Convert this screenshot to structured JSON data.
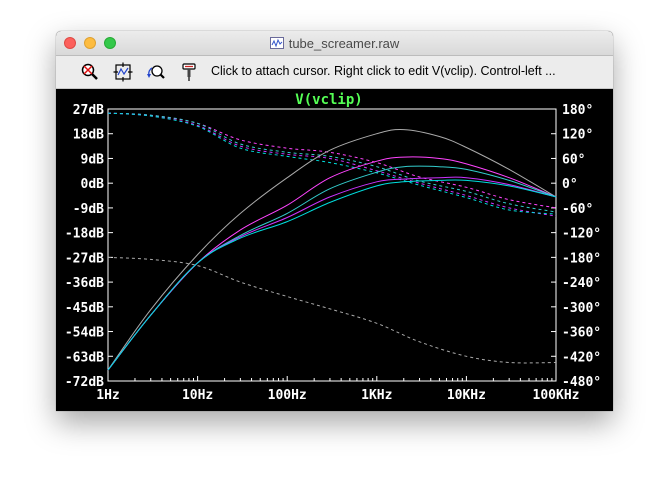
{
  "window": {
    "title": "tube_screamer.raw",
    "title_icon": "waveform-file-icon"
  },
  "toolbar": {
    "tools": [
      {
        "name": "zoom-cancel-icon"
      },
      {
        "name": "autorange-icon"
      },
      {
        "name": "undo-zoom-icon"
      },
      {
        "name": "probe-icon"
      }
    ],
    "status": "Click to attach cursor. Right click to edit V(vclip).  Control-left ..."
  },
  "chart_data": {
    "type": "line",
    "title": "V(vclip)",
    "title_color": "#55ff55",
    "background": "#000000",
    "x_scale": "log",
    "xlim": [
      1,
      100000
    ],
    "x_ticks": [
      1,
      10,
      100,
      1000,
      10000,
      100000
    ],
    "x_tick_labels": [
      "1Hz",
      "10Hz",
      "100Hz",
      "1KHz",
      "10KHz",
      "100KHz"
    ],
    "ylim_left": [
      -72,
      27
    ],
    "y_left_ticks": [
      27,
      18,
      9,
      0,
      -9,
      -18,
      -27,
      -36,
      -45,
      -54,
      -63,
      -72
    ],
    "y_left_tick_labels": [
      "27dB",
      "18dB",
      "9dB",
      "0dB",
      "-9dB",
      "-18dB",
      "-27dB",
      "-36dB",
      "-45dB",
      "-54dB",
      "-63dB",
      "-72dB"
    ],
    "ylim_right": [
      -480,
      180
    ],
    "y_right_ticks": [
      180,
      120,
      60,
      0,
      -60,
      -120,
      -180,
      -240,
      -300,
      -360,
      -420,
      -480
    ],
    "y_right_tick_labels": [
      "180°",
      "120°",
      "60°",
      "0°",
      "-60°",
      "-120°",
      "-180°",
      "-240°",
      "-300°",
      "-360°",
      "-420°",
      "-480°"
    ],
    "grid": false,
    "magnitude_series": [
      {
        "color": "#aaaaaa",
        "x": [
          1,
          3,
          10,
          30,
          100,
          300,
          1000,
          2000,
          5000,
          10000,
          30000,
          100000
        ],
        "y": [
          -68,
          -46,
          -26,
          -11,
          2,
          12,
          18,
          19.5,
          17,
          13,
          5,
          -5
        ]
      },
      {
        "color": "#ff44ff",
        "x": [
          1,
          3,
          10,
          30,
          100,
          300,
          1000,
          2000,
          5000,
          10000,
          30000,
          100000
        ],
        "y": [
          -68,
          -48,
          -29,
          -17,
          -8,
          2,
          8,
          9.5,
          9,
          7,
          2,
          -5
        ]
      },
      {
        "color": "#33cccc",
        "x": [
          1,
          3,
          10,
          30,
          100,
          300,
          1000,
          2000,
          5000,
          10000,
          30000,
          100000
        ],
        "y": [
          -68,
          -48,
          -29,
          -19,
          -11,
          -2,
          4,
          6,
          6,
          5,
          1,
          -5
        ]
      },
      {
        "color": "#cc33ff",
        "x": [
          1,
          3,
          10,
          30,
          100,
          300,
          1000,
          2000,
          5000,
          10000,
          30000,
          100000
        ],
        "y": [
          -68,
          -48,
          -29,
          -19.5,
          -12.5,
          -5,
          0.5,
          1.5,
          2,
          2,
          -0.5,
          -5
        ]
      },
      {
        "color": "#00dddd",
        "x": [
          1,
          3,
          10,
          30,
          100,
          300,
          1000,
          2000,
          5000,
          10000,
          30000,
          100000
        ],
        "y": [
          -68,
          -48,
          -29,
          -20,
          -14,
          -7,
          -1,
          0.5,
          1,
          1,
          -1,
          -5
        ]
      }
    ],
    "phase_series": [
      {
        "color": "#aaaaaa",
        "x": [
          1,
          3,
          10,
          30,
          100,
          300,
          1000,
          3000,
          10000,
          30000,
          100000
        ],
        "y": [
          -180,
          -185,
          -200,
          -240,
          -275,
          -305,
          -340,
          -385,
          -420,
          -435,
          -435
        ]
      },
      {
        "color": "#ff44ff",
        "x": [
          1,
          3,
          10,
          30,
          100,
          300,
          1000,
          3000,
          10000,
          30000,
          100000
        ],
        "y": [
          170,
          165,
          145,
          105,
          85,
          75,
          50,
          15,
          -10,
          -40,
          -60
        ]
      },
      {
        "color": "#33cccc",
        "x": [
          1,
          3,
          10,
          30,
          100,
          300,
          1000,
          3000,
          10000,
          30000,
          100000
        ],
        "y": [
          170,
          165,
          145,
          95,
          75,
          65,
          40,
          5,
          -20,
          -50,
          -70
        ]
      },
      {
        "color": "#cc33ff",
        "x": [
          1,
          3,
          10,
          30,
          100,
          300,
          1000,
          3000,
          10000,
          30000,
          100000
        ],
        "y": [
          170,
          163,
          140,
          90,
          70,
          60,
          30,
          0,
          -30,
          -60,
          -80
        ]
      },
      {
        "color": "#00dddd",
        "x": [
          1,
          3,
          10,
          30,
          100,
          300,
          1000,
          3000,
          10000,
          30000,
          100000
        ],
        "y": [
          170,
          163,
          138,
          85,
          65,
          50,
          25,
          -5,
          -35,
          -65,
          -75
        ]
      }
    ]
  }
}
